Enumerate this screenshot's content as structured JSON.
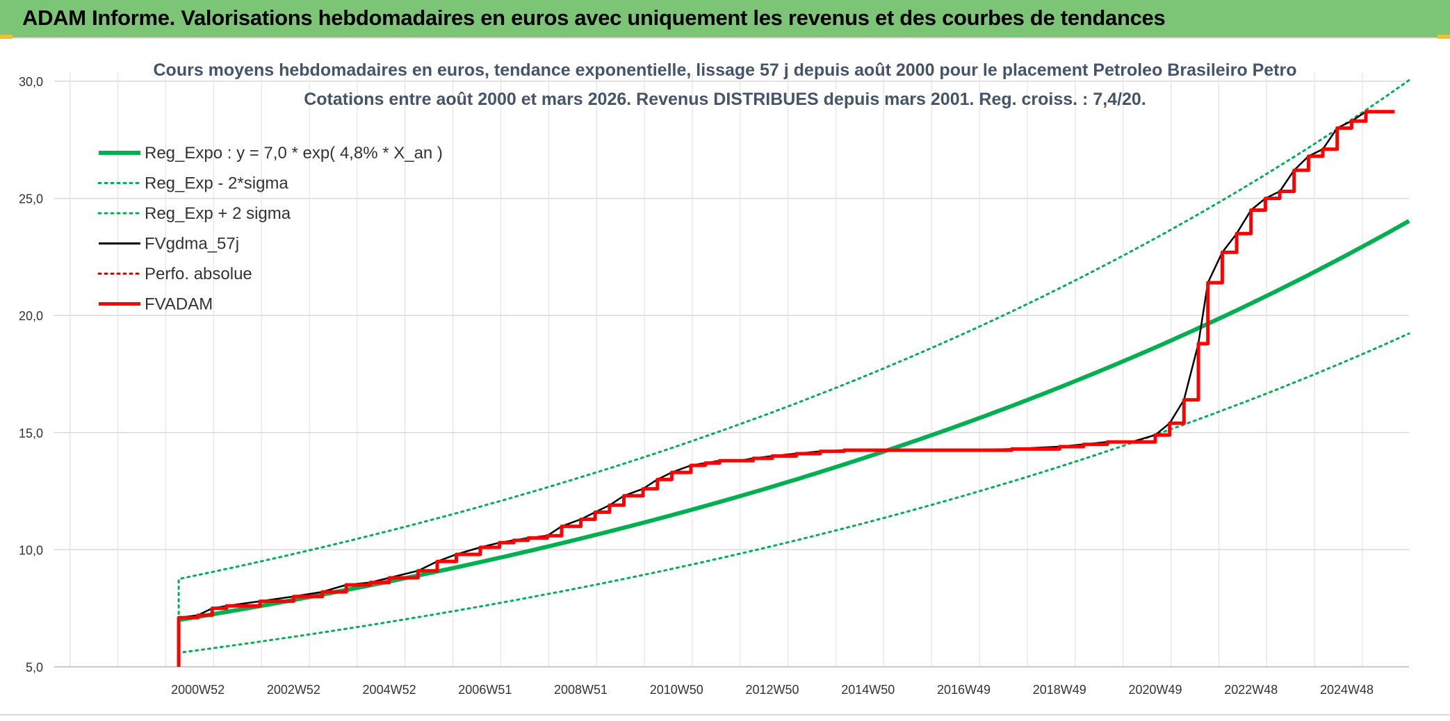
{
  "header": {
    "title": "ADAM Informe. Valorisations hebdomadaires en euros avec uniquement les revenus et des courbes de tendances",
    "background": "#7cc576"
  },
  "chart_data": {
    "type": "line",
    "title": "Cours moyens hebdomadaires en euros, tendance exponentielle, lissage 57 j depuis août 2000 pour le placement Petroleo Brasileiro Petro",
    "subtitle": "Cotations entre août 2000 et mars 2026. Revenus DISTRIBUES depuis mars 2001. Reg. croiss. : 7,4/20.",
    "xlabel": "",
    "ylabel": "",
    "xlim": [
      1998.0,
      2026.3
    ],
    "ylim": [
      5.0,
      30.0
    ],
    "y_ticks": [
      5,
      10,
      15,
      20,
      25,
      30
    ],
    "y_tick_labels": [
      "5,0",
      "10,0",
      "15,0",
      "20,0",
      "25,0",
      "30,0"
    ],
    "x_tick_values": [
      2001.0,
      2003.0,
      2005.0,
      2007.0,
      2009.0,
      2011.0,
      2013.0,
      2015.0,
      2017.0,
      2019.0,
      2021.0,
      2023.0,
      2025.0
    ],
    "x_tick_labels": [
      "2000W52",
      "2002W52",
      "2004W52",
      "2006W51",
      "2008W51",
      "2010W50",
      "2012W50",
      "2014W50",
      "2016W49",
      "2018W49",
      "2020W49",
      "2022W48",
      "2024W48"
    ],
    "grid": true,
    "legend_position": "top-left",
    "regression": {
      "x0": 2000.6,
      "a": 7.0,
      "rate": 0.048,
      "sigma_factor": 1.25
    },
    "series": [
      {
        "name": "Reg_Expo : y = 7,0 * exp( 4,8% *  X_an )",
        "color": "#00b050",
        "style": "solid",
        "width": 6,
        "kind": "reg"
      },
      {
        "name": "Reg_Exp - 2*sigma",
        "color": "#00b050",
        "style": "dotted",
        "width": 3,
        "kind": "reg_high"
      },
      {
        "name": "Reg_Exp + 2 sigma",
        "color": "#00b050",
        "style": "dotted",
        "width": 3,
        "kind": "reg_low"
      },
      {
        "name": "FVgdma_57j",
        "color": "#000000",
        "style": "solid",
        "width": 2.5,
        "kind": "smooth"
      },
      {
        "name": "Perfo. absolue",
        "color": "#c00000",
        "style": "dotted",
        "width": 2,
        "kind": "legend_only"
      },
      {
        "name": "FVADAM",
        "color": "#ff0000",
        "style": "solid",
        "width": 5,
        "kind": "data",
        "x": [
          2000.6,
          2000.6,
          2001.0,
          2001.3,
          2001.6,
          2002.3,
          2003.0,
          2003.6,
          2004.1,
          2004.6,
          2005.0,
          2005.6,
          2006.0,
          2006.4,
          2006.9,
          2007.3,
          2007.6,
          2007.9,
          2008.3,
          2008.6,
          2009.0,
          2009.3,
          2009.6,
          2009.9,
          2010.3,
          2010.6,
          2010.9,
          2011.3,
          2011.6,
          2011.9,
          2012.3,
          2012.6,
          2013.0,
          2013.5,
          2014.0,
          2014.5,
          2015.0,
          2016.0,
          2017.0,
          2018.0,
          2019.0,
          2019.5,
          2020.0,
          2020.5,
          2021.0,
          2021.3,
          2021.6,
          2021.9,
          2022.1,
          2022.4,
          2022.7,
          2023.0,
          2023.3,
          2023.6,
          2023.9,
          2024.2,
          2024.5,
          2024.8,
          2025.1,
          2025.4,
          2025.7,
          2026.0
        ],
        "y": [
          5.0,
          7.1,
          7.2,
          7.5,
          7.6,
          7.8,
          8.0,
          8.2,
          8.5,
          8.6,
          8.8,
          9.1,
          9.5,
          9.8,
          10.1,
          10.3,
          10.4,
          10.5,
          10.6,
          11.0,
          11.3,
          11.6,
          11.9,
          12.3,
          12.6,
          13.0,
          13.3,
          13.6,
          13.7,
          13.8,
          13.8,
          13.9,
          14.0,
          14.1,
          14.2,
          14.25,
          14.25,
          14.25,
          14.25,
          14.3,
          14.4,
          14.5,
          14.6,
          14.6,
          14.9,
          15.4,
          16.4,
          18.8,
          21.4,
          22.7,
          23.5,
          24.5,
          25.0,
          25.3,
          26.2,
          26.8,
          27.1,
          28.0,
          28.3,
          28.7,
          28.7,
          28.7
        ]
      }
    ]
  }
}
